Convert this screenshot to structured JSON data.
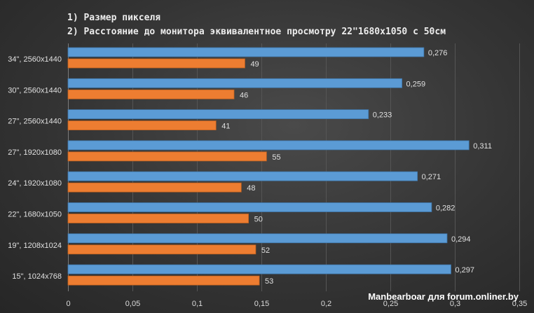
{
  "chart_data": {
    "type": "bar",
    "orientation": "horizontal",
    "title_lines": [
      "1) Размер пикселя",
      "2) Расстояние до монитора эквивалентное просмотру 22\"1680x1050 с 50см"
    ],
    "categories": [
      "34\", 2560x1440",
      "30\", 2560x1440",
      "27\", 2560x1440",
      "27\", 1920x1080",
      "24\", 1920x1080",
      "22\", 1680x1050",
      "19\", 1208x1024",
      "15\", 1024x768"
    ],
    "series": [
      {
        "values": [
          0.276,
          0.259,
          0.233,
          0.311,
          0.271,
          0.282,
          0.294,
          0.297
        ],
        "labels": [
          "0,276",
          "0,259",
          "0,233",
          "0,311",
          "0,271",
          "0,282",
          "0,294",
          "0,297"
        ],
        "color": "#5b9bd5"
      },
      {
        "values": [
          49,
          46,
          41,
          55,
          48,
          50,
          52,
          53
        ],
        "labels": [
          "49",
          "46",
          "41",
          "55",
          "48",
          "50",
          "52",
          "53"
        ],
        "color": "#ed7d31"
      }
    ],
    "x_ticks": [
      "0",
      "0,05",
      "0,1",
      "0,15",
      "0,2",
      "0,25",
      "0,3",
      "0,35"
    ],
    "xlim": [
      0,
      0.35
    ],
    "grid": true,
    "legend": "none"
  },
  "watermark": "Manbearboar для forum.onliner.by"
}
